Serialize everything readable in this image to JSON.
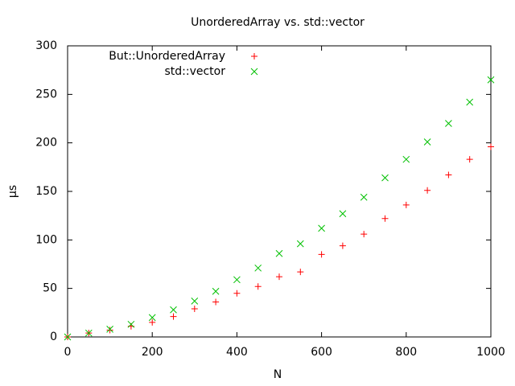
{
  "chart_data": {
    "type": "scatter",
    "title": "UnorderedArray vs. std::vector",
    "xlabel": "N",
    "ylabel": "µs",
    "x": [
      0,
      50,
      100,
      150,
      200,
      250,
      300,
      350,
      400,
      450,
      500,
      550,
      600,
      650,
      700,
      750,
      800,
      850,
      900,
      950,
      1000
    ],
    "series": [
      {
        "name": "But::UnorderedArray",
        "color": "#ff0000",
        "marker": "plus",
        "values": [
          0,
          4,
          7,
          11,
          15,
          21,
          29,
          36,
          45,
          52,
          62,
          67,
          85,
          94,
          106,
          122,
          136,
          151,
          167,
          183,
          196
        ]
      },
      {
        "name": "std::vector",
        "color": "#00c000",
        "marker": "cross",
        "values": [
          0,
          4,
          8,
          13,
          20,
          28,
          37,
          47,
          59,
          71,
          86,
          96,
          112,
          127,
          144,
          164,
          183,
          201,
          220,
          242,
          265
        ]
      }
    ],
    "xlim": [
      0,
      1000
    ],
    "xticks": [
      0,
      200,
      400,
      600,
      800,
      1000
    ],
    "ylim": [
      0,
      300
    ],
    "yticks": [
      0,
      50,
      100,
      150,
      200,
      250,
      300
    ],
    "grid": false,
    "legend": "upper left"
  }
}
